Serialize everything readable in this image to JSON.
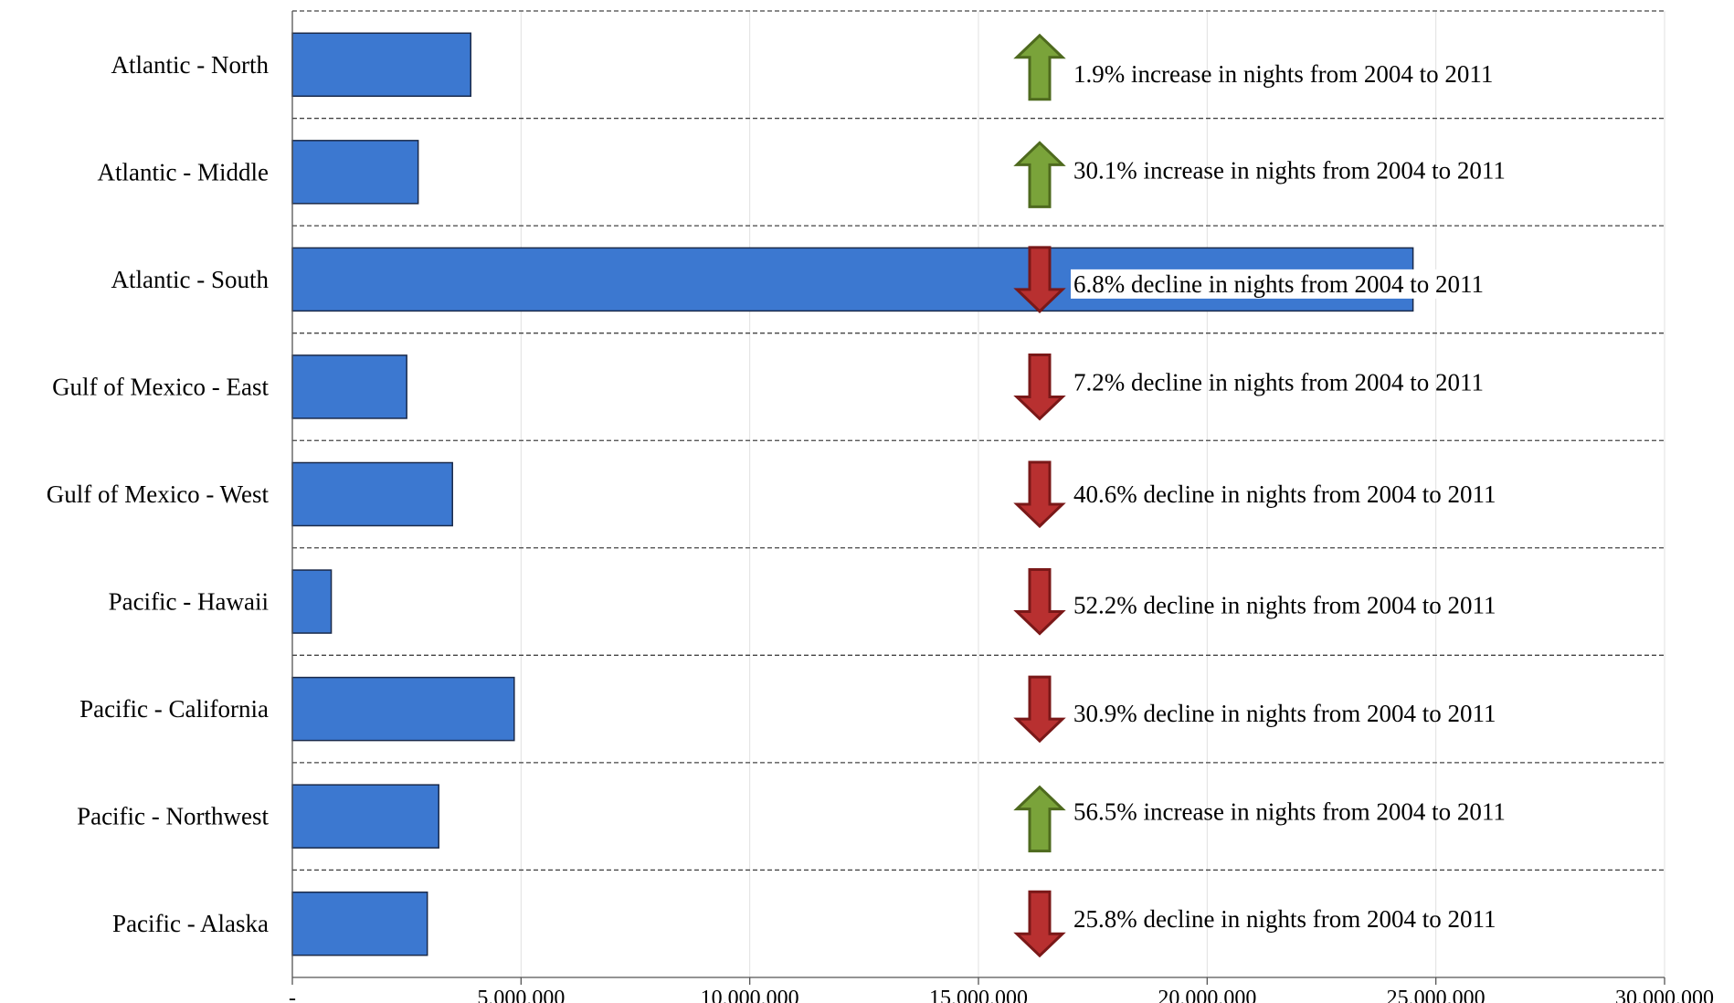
{
  "chart_data": {
    "type": "bar",
    "orientation": "horizontal",
    "title": "",
    "xlabel": "",
    "ylabel": "",
    "categories": [
      "Atlantic - North",
      "Atlantic - Middle",
      "Atlantic - South",
      "Gulf of Mexico - East",
      "Gulf of Mexico - West",
      "Pacific - Hawaii",
      "Pacific - California",
      "Pacific - Northwest",
      "Pacific - Alaska"
    ],
    "values": [
      3900000,
      2750000,
      24500000,
      2500000,
      3500000,
      850000,
      4850000,
      3200000,
      2950000
    ],
    "xlim": [
      0,
      30000000
    ],
    "xticks": [
      0,
      5000000,
      10000000,
      15000000,
      20000000,
      25000000,
      30000000
    ],
    "xtick_labels": [
      "-",
      "5,000,000",
      "10,000,000",
      "15,000,000",
      "20,000,000",
      "25,000,000",
      "30,000,000"
    ],
    "bar_color": "#3c78d0",
    "grid": {
      "vertical": true,
      "horizontal_dashed": true
    },
    "annotations": [
      {
        "direction": "up",
        "text": "1.9% increase in nights from 2004 to 2011"
      },
      {
        "direction": "up",
        "text": "30.1% increase in nights from 2004 to 2011"
      },
      {
        "direction": "down",
        "text": "6.8% decline in nights from 2004 to 2011"
      },
      {
        "direction": "down",
        "text": "7.2% decline in nights from 2004 to 2011"
      },
      {
        "direction": "down",
        "text": "40.6% decline in nights from 2004 to 2011"
      },
      {
        "direction": "down",
        "text": "52.2% decline in nights from 2004 to 2011"
      },
      {
        "direction": "down",
        "text": "30.9% decline in nights from 2004 to 2011"
      },
      {
        "direction": "up",
        "text": "56.5% increase in nights from 2004 to 2011"
      },
      {
        "direction": "down",
        "text": "25.8% decline in nights from 2004 to 2011"
      }
    ],
    "colors": {
      "increase": "#7aa33a",
      "decline": "#b83030"
    }
  }
}
